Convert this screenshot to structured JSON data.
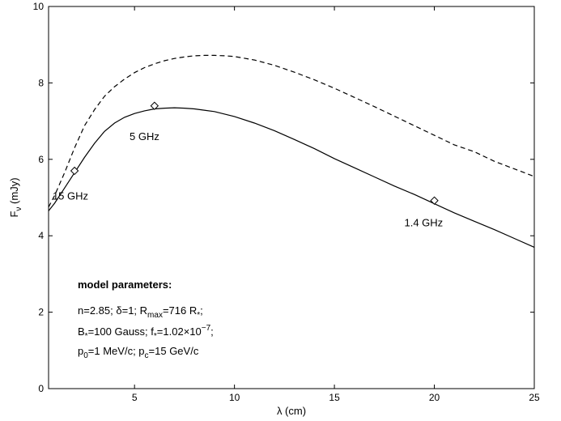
{
  "chart_data": {
    "type": "line",
    "xlabel": "λ (cm)",
    "ylabel": "F",
    "ylabel_sub": "ν",
    "ylabel_unit": "(mJy)",
    "xlim": [
      0.7,
      25
    ],
    "ylim": [
      0,
      10
    ],
    "xticks": [
      5,
      10,
      15,
      20,
      25
    ],
    "yticks": [
      0,
      2,
      4,
      6,
      8,
      10
    ],
    "grid": false,
    "series": [
      {
        "style": "solid",
        "x": [
          0.7,
          1.0,
          1.5,
          2.0,
          2.5,
          3.0,
          3.5,
          4.0,
          4.5,
          5.0,
          5.5,
          6.0,
          6.5,
          7.0,
          7.5,
          8.0,
          9.0,
          10.0,
          11.0,
          12.0,
          13.0,
          14.0,
          15.0,
          16.0,
          17.0,
          18.0,
          19.0,
          20.0,
          21.0,
          22.0,
          23.0,
          24.0,
          25.0
        ],
        "y": [
          4.65,
          4.85,
          5.25,
          5.65,
          6.05,
          6.42,
          6.73,
          6.95,
          7.1,
          7.2,
          7.27,
          7.32,
          7.34,
          7.35,
          7.34,
          7.32,
          7.25,
          7.12,
          6.95,
          6.75,
          6.52,
          6.28,
          6.02,
          5.78,
          5.54,
          5.3,
          5.08,
          4.84,
          4.6,
          4.38,
          4.16,
          3.93,
          3.7
        ]
      },
      {
        "style": "dashed",
        "x": [
          0.7,
          1.0,
          1.5,
          2.0,
          2.5,
          3.0,
          3.5,
          4.0,
          4.5,
          5.0,
          5.5,
          6.0,
          6.5,
          7.0,
          7.5,
          8.0,
          8.5,
          9.0,
          9.5,
          10.0,
          11.0,
          12.0,
          13.0,
          14.0,
          15.0,
          16.0,
          17.0,
          18.0,
          19.0,
          20.0,
          21.0,
          22.0,
          23.0,
          24.0,
          25.0
        ],
        "y": [
          4.75,
          5.05,
          5.65,
          6.3,
          6.88,
          7.3,
          7.65,
          7.9,
          8.1,
          8.27,
          8.4,
          8.5,
          8.58,
          8.64,
          8.68,
          8.71,
          8.72,
          8.72,
          8.71,
          8.69,
          8.6,
          8.46,
          8.28,
          8.08,
          7.86,
          7.62,
          7.38,
          7.13,
          6.88,
          6.63,
          6.38,
          6.2,
          5.95,
          5.75,
          5.55
        ]
      }
    ],
    "markers": [
      {
        "x": 2.0,
        "y": 5.7,
        "shape": "diamond"
      },
      {
        "x": 6.0,
        "y": 7.4,
        "shape": "diamond"
      },
      {
        "x": 20.0,
        "y": 4.92,
        "shape": "diamond"
      }
    ],
    "annotations": [
      {
        "text": "15 GHz",
        "x": 0.9,
        "y": 4.95
      },
      {
        "text": "5 GHz",
        "x": 4.75,
        "y": 6.5
      },
      {
        "text": "1.4 GHz",
        "x": 18.5,
        "y": 4.25
      }
    ],
    "parameters_box": {
      "heading": "model parameters:",
      "lines": [
        [
          {
            "t": "n=2.85; "
          },
          {
            "t": "δ",
            "greek": true
          },
          {
            "t": "=1; R"
          },
          {
            "t": "max",
            "sub": true
          },
          {
            "t": "=716 R"
          },
          {
            "t": "*",
            "sub": true
          },
          {
            "t": ";"
          }
        ],
        [
          {
            "t": "B"
          },
          {
            "t": "*",
            "sub": true
          },
          {
            "t": "=100 Gauss; f"
          },
          {
            "t": "*",
            "sub": true
          },
          {
            "t": "=1.02×10"
          },
          {
            "t": "−7",
            "sup": true
          },
          {
            "t": ";"
          }
        ],
        [
          {
            "t": "p"
          },
          {
            "t": "0",
            "sub": true
          },
          {
            "t": "=1 MeV/c; p"
          },
          {
            "t": "c",
            "sub": true
          },
          {
            "t": "=15 GeV/c"
          }
        ]
      ]
    }
  }
}
